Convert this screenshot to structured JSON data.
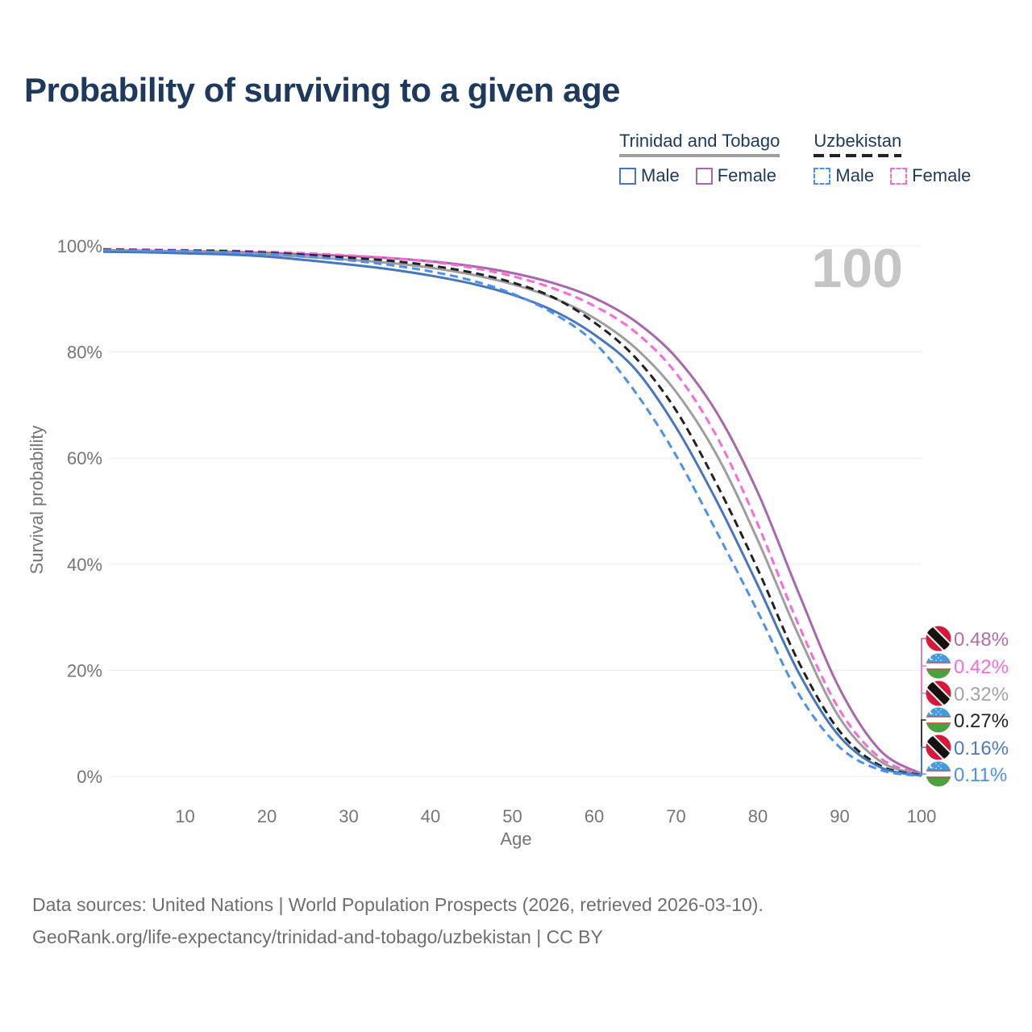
{
  "title": "Probability of surviving to a given age",
  "legend": {
    "groups": [
      {
        "label": "Trinidad and Tobago",
        "line_style": "solid",
        "line_color": "#9e9e9e",
        "items": [
          {
            "label": "Male",
            "color": "#4576bf",
            "dashed": false
          },
          {
            "label": "Female",
            "color": "#a968ad",
            "dashed": false
          }
        ]
      },
      {
        "label": "Uzbekistan",
        "line_style": "dashed",
        "line_color": "#222222",
        "items": [
          {
            "label": "Male",
            "color": "#4b90ee",
            "dashed": true
          },
          {
            "label": "Female",
            "color": "#fc69d7",
            "dashed": true
          }
        ]
      }
    ]
  },
  "chart_data": {
    "type": "line",
    "title": "Probability of surviving to a given age",
    "xlabel": "Age",
    "ylabel": "Survival probability",
    "xlim": [
      0,
      100
    ],
    "ylim": [
      0,
      100
    ],
    "grid": "horizontal",
    "legend_position": "top-right",
    "hover_age": "100",
    "x_ticks": [
      10,
      20,
      30,
      40,
      50,
      60,
      70,
      80,
      90,
      100
    ],
    "x_tick_labels": [
      "10",
      "20",
      "30",
      "40",
      "50",
      "60",
      "70",
      "80",
      "90",
      "100"
    ],
    "y_ticks": [
      0,
      20,
      40,
      60,
      80,
      100
    ],
    "y_tick_labels": [
      "0%",
      "20%",
      "40%",
      "60%",
      "80%",
      "100%"
    ],
    "ages": [
      0,
      5,
      10,
      15,
      20,
      25,
      30,
      35,
      40,
      45,
      50,
      55,
      60,
      65,
      70,
      75,
      80,
      85,
      90,
      95,
      100
    ],
    "series": [
      {
        "id": "trinidad-and-tobago-female",
        "name": "Trinidad and Tobago - Female",
        "color": "#a968ad",
        "dashed": false,
        "values": [
          99.2,
          99.1,
          99.0,
          98.9,
          98.7,
          98.4,
          98.1,
          97.7,
          97.1,
          96.2,
          94.9,
          93.0,
          90.2,
          85.8,
          79.0,
          68.5,
          53.5,
          34.5,
          16.5,
          4.8,
          0.48
        ]
      },
      {
        "id": "uzbekistan-female",
        "name": "Uzbekistan - Female",
        "color": "#fc69d7",
        "dashed": true,
        "values": [
          99.4,
          99.3,
          99.2,
          99.1,
          98.9,
          98.6,
          98.2,
          97.7,
          97.0,
          95.9,
          94.3,
          92.0,
          88.7,
          83.8,
          76.0,
          64.0,
          47.5,
          28.5,
          12.5,
          3.4,
          0.42
        ]
      },
      {
        "id": "trinidad-and-tobago-both",
        "name": "Trinidad and Tobago - Both sexes",
        "color": "#9e9e9e",
        "dashed": false,
        "values": [
          99.1,
          99.0,
          98.9,
          98.7,
          98.4,
          97.9,
          97.4,
          96.8,
          95.9,
          94.6,
          92.8,
          90.2,
          86.4,
          80.8,
          72.5,
          60.5,
          44.5,
          26.5,
          11.0,
          2.8,
          0.32
        ]
      },
      {
        "id": "uzbekistan-both",
        "name": "Uzbekistan - Both sexes",
        "color": "#222222",
        "dashed": true,
        "values": [
          99.3,
          99.2,
          99.1,
          99.0,
          98.7,
          98.3,
          97.8,
          97.2,
          96.3,
          95.0,
          93.1,
          90.3,
          85.6,
          79.0,
          69.0,
          55.0,
          39.0,
          21.5,
          8.5,
          2.0,
          0.27
        ]
      },
      {
        "id": "trinidad-and-tobago-male",
        "name": "Trinidad and Tobago - Male",
        "color": "#4576bf",
        "dashed": false,
        "values": [
          98.9,
          98.8,
          98.6,
          98.4,
          98.0,
          97.3,
          96.5,
          95.6,
          94.4,
          92.9,
          90.8,
          87.8,
          83.3,
          76.8,
          65.8,
          51.8,
          36.0,
          19.5,
          7.5,
          1.7,
          0.16
        ]
      },
      {
        "id": "uzbekistan-male",
        "name": "Uzbekistan - Male",
        "color": "#4b90ee",
        "dashed": true,
        "values": [
          99.2,
          99.1,
          99.0,
          98.8,
          98.5,
          98.0,
          97.3,
          96.4,
          95.2,
          93.5,
          91.0,
          87.3,
          81.8,
          72.5,
          60.5,
          46.0,
          31.0,
          15.5,
          5.5,
          1.2,
          0.11
        ]
      }
    ],
    "end_labels": [
      {
        "value": "0.48%",
        "flag": "trinidad-and-tobago",
        "series": "trinidad-and-tobago-female",
        "color": "#b06cae"
      },
      {
        "value": "0.42%",
        "flag": "uzbekistan",
        "series": "uzbekistan-female",
        "color": "#fc69d7"
      },
      {
        "value": "0.32%",
        "flag": "trinidad-and-tobago",
        "series": "trinidad-and-tobago-both",
        "color": "#a3a3a3"
      },
      {
        "value": "0.27%",
        "flag": "uzbekistan",
        "series": "uzbekistan-both",
        "color": "#222222"
      },
      {
        "value": "0.16%",
        "flag": "trinidad-and-tobago",
        "series": "trinidad-and-tobago-male",
        "color": "#4a7cc0"
      },
      {
        "value": "0.11%",
        "flag": "uzbekistan",
        "series": "uzbekistan-male",
        "color": "#4b90ee"
      }
    ]
  },
  "footer": {
    "line1": "Data sources: United Nations | World Population Prospects (2026, retrieved 2026-03-10).",
    "line2": "GeoRank.org/life-expectancy/trinidad-and-tobago/uzbekistan | CC BY"
  }
}
